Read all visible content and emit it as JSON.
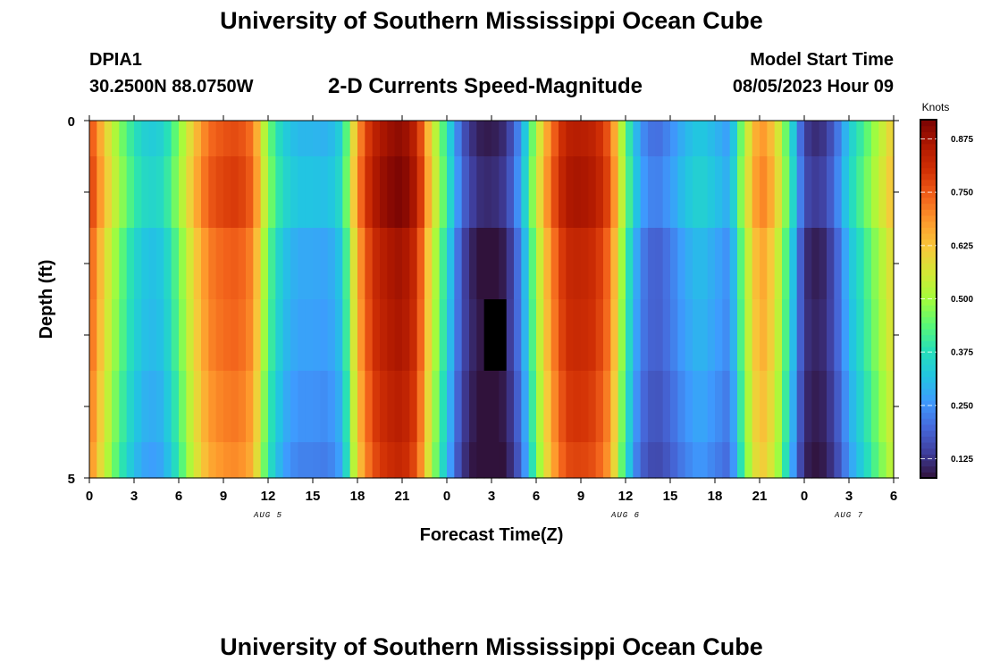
{
  "header": {
    "title": "University of Southern Mississippi Ocean Cube",
    "station_id": "DPIA1",
    "coords": "30.2500N  88.0750W",
    "chart_title": "2-D Currents Speed-Magnitude",
    "model_start_label": "Model Start Time",
    "model_start_value": "08/05/2023 Hour 09"
  },
  "footer": {
    "title": "University of Southern Mississippi Ocean Cube"
  },
  "colors": {
    "colormap": [
      "#30123b",
      "#3f3e9c",
      "#4669db",
      "#3e9bfe",
      "#22c5e2",
      "#27e0b8",
      "#5af875",
      "#a4fc3c",
      "#d2e935",
      "#f7c93a",
      "#fe9b2d",
      "#f3631b",
      "#d23105",
      "#b01901",
      "#7a0403"
    ],
    "missing": "#000000"
  },
  "chart_data": {
    "type": "heatmap",
    "title": "2-D Currents Speed-Magnitude",
    "xlabel": "Forecast Time(Z)",
    "ylabel": "Depth (ft)",
    "x_tick_labels": [
      "0",
      "3",
      "6",
      "9",
      "12",
      "15",
      "18",
      "21",
      "0",
      "3",
      "6",
      "9",
      "12",
      "15",
      "18",
      "21",
      "0",
      "3",
      "6"
    ],
    "x_range_hours": [
      0,
      54
    ],
    "date_labels": [
      {
        "text": "AUG 5",
        "hour": 12
      },
      {
        "text": "AUG 6",
        "hour": 36
      },
      {
        "text": "AUG 7",
        "hour": 51
      }
    ],
    "y_tick_labels": [
      "0",
      "5"
    ],
    "y_range": [
      0,
      5
    ],
    "colorbar": {
      "label": "Knots",
      "ticks": [
        "0.125",
        "0.250",
        "0.375",
        "0.500",
        "0.625",
        "0.750",
        "0.875"
      ],
      "range": [
        0.08,
        0.92
      ]
    },
    "depth_rows": [
      {
        "depth_range": [
          0,
          0.5
        ],
        "speed_offset": 0.0,
        "low_scale": 1.0
      },
      {
        "depth_range": [
          0.5,
          1.5
        ],
        "speed_offset": 0.02,
        "low_scale": 1.0
      },
      {
        "depth_range": [
          1.5,
          2.5
        ],
        "speed_offset": -0.02,
        "low_scale": 1.0
      },
      {
        "depth_range": [
          2.5,
          3.5
        ],
        "speed_offset": -0.03,
        "low_scale": 0.9
      },
      {
        "depth_range": [
          3.5,
          4.5
        ],
        "speed_offset": -0.05,
        "low_scale": 0.85
      },
      {
        "depth_range": [
          4.5,
          5.0
        ],
        "speed_offset": -0.07,
        "low_scale": 0.8
      }
    ],
    "speed_by_hour": [
      0.78,
      0.62,
      0.48,
      0.38,
      0.33,
      0.35,
      0.47,
      0.62,
      0.73,
      0.76,
      0.77,
      0.72,
      0.46,
      0.34,
      0.3,
      0.3,
      0.29,
      0.35,
      0.68,
      0.83,
      0.88,
      0.9,
      0.83,
      0.58,
      0.38,
      0.18,
      0.1,
      0.09,
      0.12,
      0.26,
      0.52,
      0.72,
      0.84,
      0.85,
      0.83,
      0.74,
      0.44,
      0.25,
      0.2,
      0.24,
      0.3,
      0.33,
      0.3,
      0.26,
      0.52,
      0.7,
      0.62,
      0.4,
      0.14,
      0.11,
      0.18,
      0.33,
      0.42,
      0.52,
      0.62
    ],
    "missing_cells": [
      {
        "hours": [
          26,
          28
        ],
        "depth_range": [
          2.5,
          3.5
        ]
      }
    ]
  }
}
